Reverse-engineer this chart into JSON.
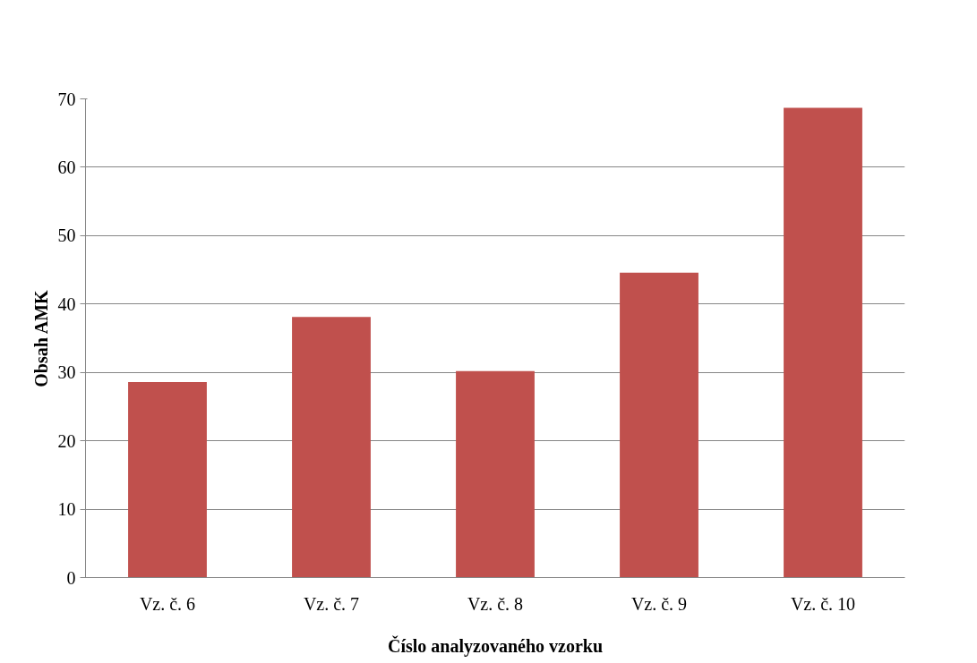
{
  "chart_data": {
    "type": "bar",
    "xlabel": "Číslo analyzovaného vzorku",
    "ylabel": "Obsah AMK",
    "categories": [
      "Vz. č. 6",
      "Vz. č. 7",
      "Vz. č. 8",
      "Vz. č. 9",
      "Vz. č. 10"
    ],
    "values": [
      28.6,
      38.1,
      30.2,
      44.6,
      68.7
    ],
    "color": "#c0504d",
    "ylim": [
      0,
      70
    ],
    "yticks": [
      0,
      10,
      20,
      30,
      40,
      50,
      60,
      70
    ],
    "grid": "y"
  }
}
